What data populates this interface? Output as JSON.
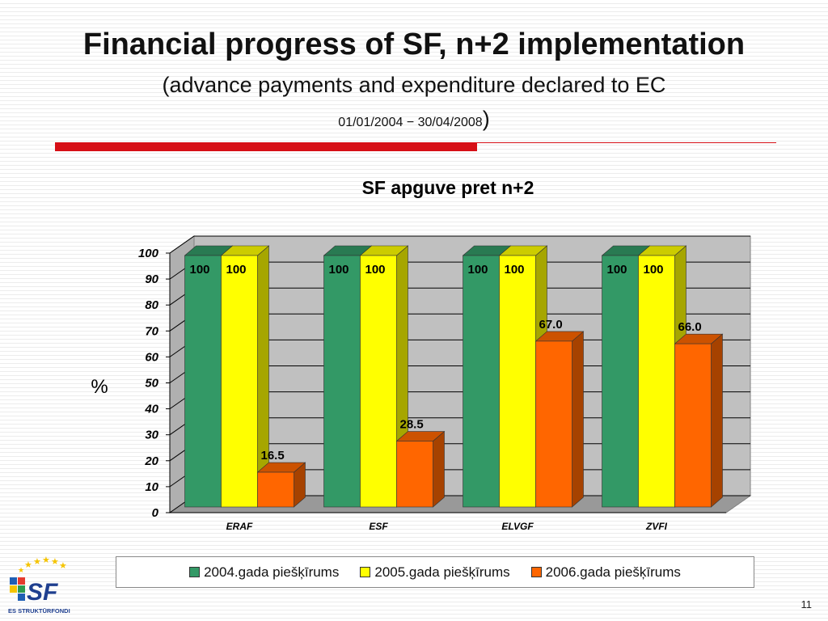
{
  "slide": {
    "title": "Financial progress of SF, n+2 implementation",
    "subtitle": "(advance payments and expenditure declared to EC",
    "date_range": "01/01/2004 − 30/04/2008",
    "paren_close": ")",
    "page_number": "11",
    "logo_text": "SF",
    "logo_caption": "ES STRUKTŪRFONDI"
  },
  "chart_data": {
    "type": "bar",
    "title": "SF apguve pret n+2",
    "xlabel": "",
    "ylabel": "%",
    "ylim": [
      0,
      100
    ],
    "yticks": [
      0,
      10,
      20,
      30,
      40,
      50,
      60,
      70,
      80,
      90,
      100
    ],
    "categories": [
      "ERAF",
      "ESF",
      "ELVGF",
      "ZVFI"
    ],
    "series": [
      {
        "name": "2004.gada piešķīrums",
        "values": [
          100,
          100,
          100,
          100
        ],
        "labels": [
          "100",
          "100",
          "100",
          "100"
        ]
      },
      {
        "name": "2005.gada piešķīrums",
        "values": [
          100,
          100,
          100,
          100
        ],
        "labels": [
          "100",
          "100",
          "100",
          "100"
        ]
      },
      {
        "name": "2006.gada piešķīrums",
        "values": [
          16.5,
          28.5,
          67.0,
          66.0
        ],
        "labels": [
          "16.5",
          "28.5",
          "67.0",
          "66.0"
        ]
      }
    ],
    "colors": [
      "#339966",
      "#ffff00",
      "#ff6600"
    ],
    "legend_position": "bottom",
    "grid": true,
    "style": "3d"
  }
}
